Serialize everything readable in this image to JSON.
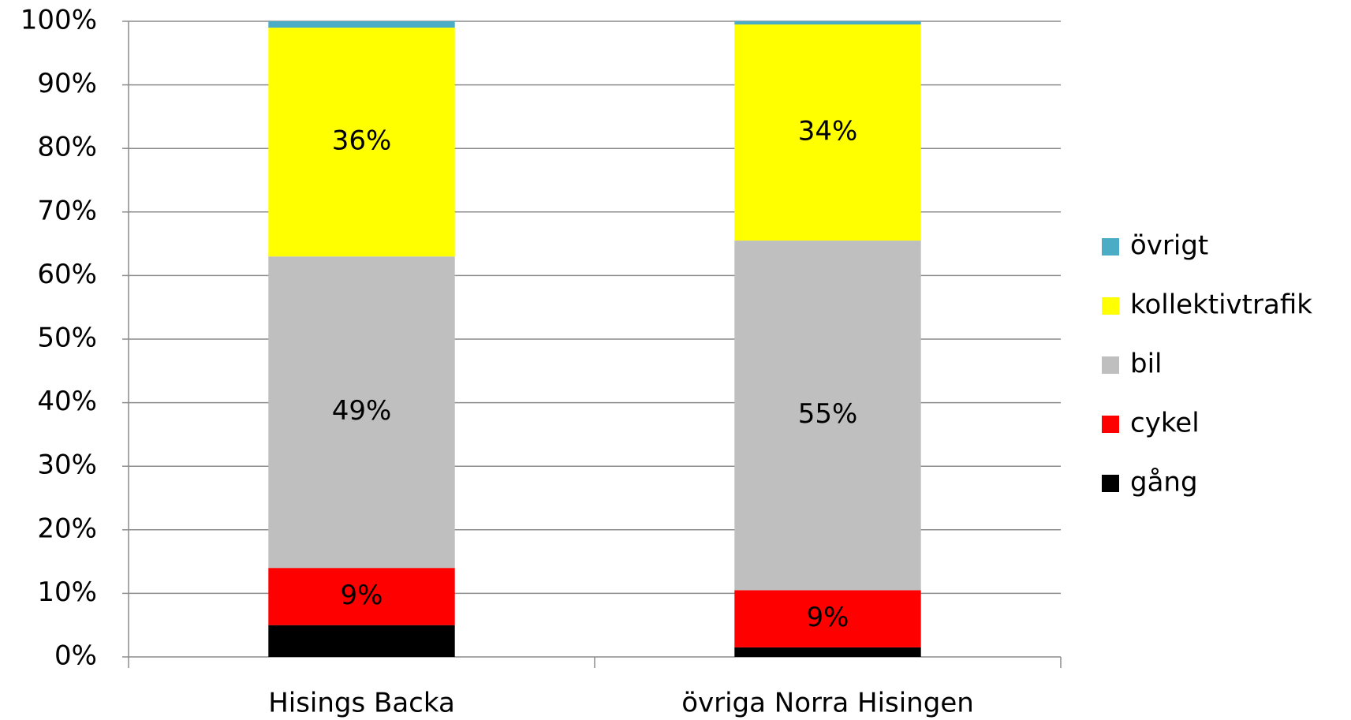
{
  "chart_data": {
    "type": "stacked_bar",
    "categories": [
      "Hisings Backa",
      "övriga Norra Hisingen"
    ],
    "series": [
      {
        "name": "gång",
        "color": "#000000",
        "values": [
          5,
          1.5
        ],
        "value_labels": [
          null,
          null
        ]
      },
      {
        "name": "cykel",
        "color": "#ff0000",
        "values": [
          9,
          9
        ],
        "value_labels": [
          "9%",
          "9%"
        ]
      },
      {
        "name": "bil",
        "color": "#bfbfbf",
        "values": [
          49,
          55
        ],
        "value_labels": [
          "49%",
          "55%"
        ]
      },
      {
        "name": "kollektivtrafik",
        "color": "#ffff00",
        "values": [
          36,
          34
        ],
        "value_labels": [
          "36%",
          "34%"
        ]
      },
      {
        "name": "övrigt",
        "color": "#4bacc6",
        "values": [
          1,
          0.5
        ],
        "value_labels": [
          null,
          null
        ]
      }
    ],
    "ylim": [
      0,
      100
    ],
    "yticks": [
      {
        "value": 0,
        "label": "0%"
      },
      {
        "value": 10,
        "label": "10%"
      },
      {
        "value": 20,
        "label": "20%"
      },
      {
        "value": 30,
        "label": "30%"
      },
      {
        "value": 40,
        "label": "40%"
      },
      {
        "value": 50,
        "label": "50%"
      },
      {
        "value": 60,
        "label": "60%"
      },
      {
        "value": 70,
        "label": "70%"
      },
      {
        "value": 80,
        "label": "80%"
      },
      {
        "value": 90,
        "label": "90%"
      },
      {
        "value": 100,
        "label": "100%"
      }
    ],
    "grid": true,
    "legend": "right"
  }
}
